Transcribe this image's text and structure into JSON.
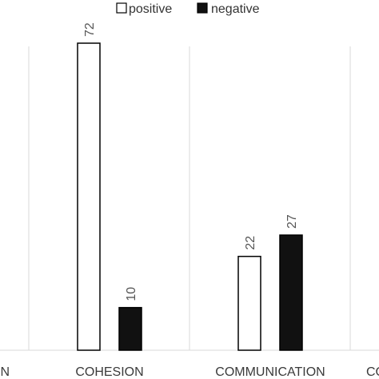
{
  "chart_data": {
    "type": "bar",
    "categories": [
      "N",
      "COHESION",
      "COMMUNICATION",
      "CO"
    ],
    "series": [
      {
        "name": "positive",
        "values": [
          null,
          72,
          22,
          null
        ],
        "color": "#ffffff",
        "stroke": "#000000"
      },
      {
        "name": "negative",
        "values": [
          null,
          10,
          27,
          null
        ],
        "color": "#111111",
        "stroke": "#000000"
      }
    ],
    "title": "",
    "xlabel": "",
    "ylabel": "",
    "ylim": [
      0,
      78
    ],
    "grid": "vertical separators",
    "legend_position": "top-center",
    "data_labels": true,
    "data_label_rotation": "vertical"
  },
  "colors": {
    "separator": "#d9d9d9",
    "baseline": "#d9d9d9",
    "text": "#3a3a3a"
  }
}
